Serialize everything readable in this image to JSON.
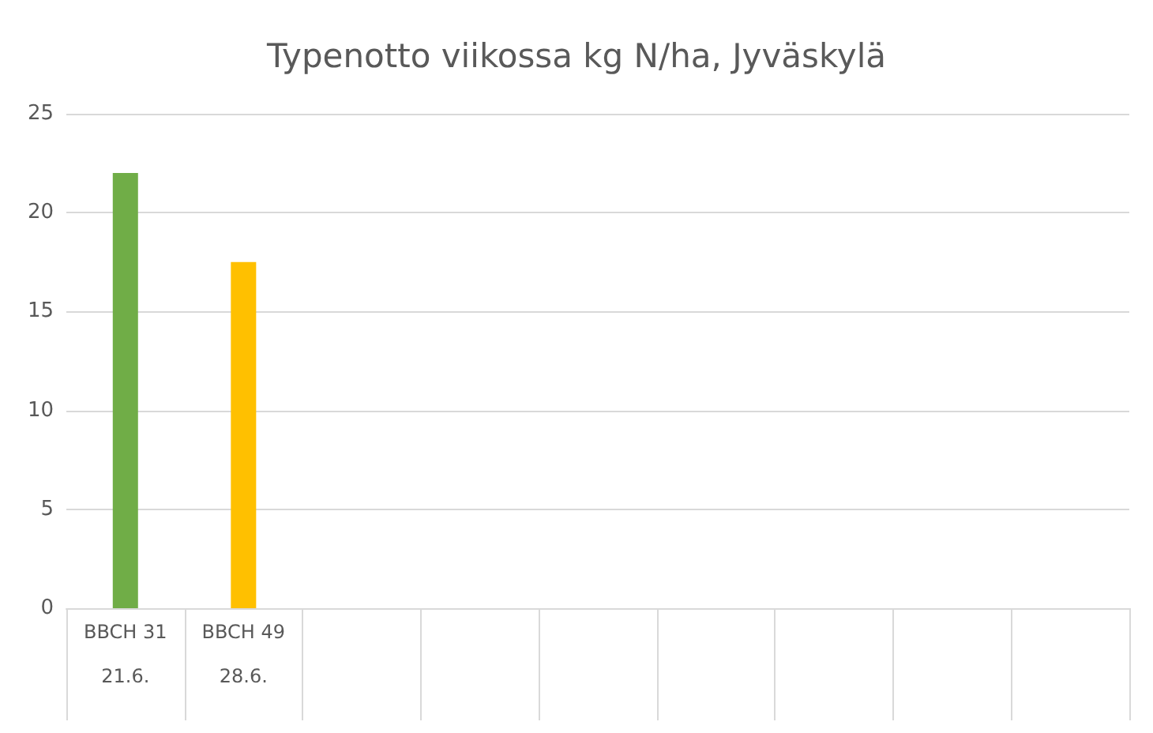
{
  "chart_data": {
    "type": "bar",
    "title": "Typenotto viikossa kg N/ha, Jyväskylä",
    "categories": [
      "BBCH 31\n\n21.6.",
      "BBCH 49\n\n28.6.",
      null,
      null,
      null,
      null,
      null,
      null,
      null
    ],
    "values": [
      22,
      17.5,
      null,
      null,
      null,
      null,
      null,
      null,
      null
    ],
    "colors": [
      "#70ad47",
      "#ffc000",
      null,
      null,
      null,
      null,
      null,
      null,
      null
    ],
    "ylim": [
      0,
      25
    ],
    "yticks": [
      0,
      5,
      10,
      15,
      20,
      25
    ],
    "grid": "y"
  }
}
